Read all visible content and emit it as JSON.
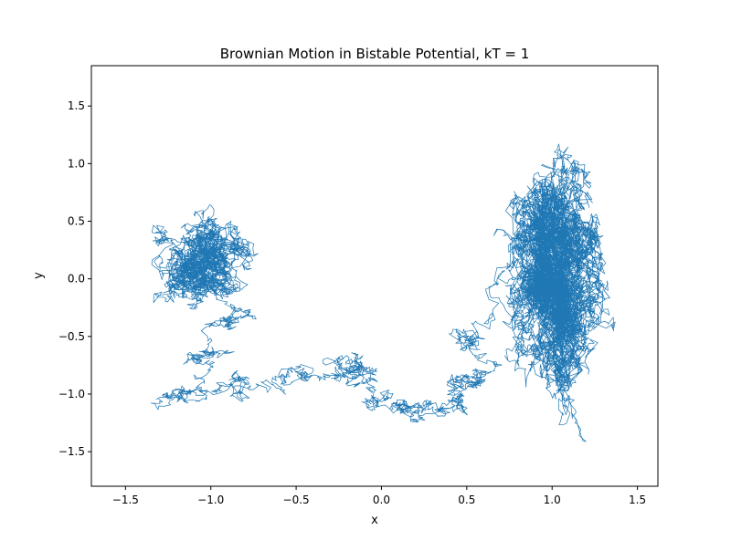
{
  "chart_data": {
    "type": "line",
    "title": "Brownian Motion in Bistable Potential, kT = 1",
    "xlabel": "x",
    "ylabel": "y",
    "xlim": [
      -1.7,
      1.62
    ],
    "ylim": [
      -1.8,
      1.85
    ],
    "x_ticks": [
      -1.5,
      -1.0,
      -0.5,
      0.0,
      0.5,
      1.0,
      1.5
    ],
    "x_tick_labels": [
      "−1.5",
      "−1.0",
      "−0.5",
      "0.0",
      "0.5",
      "1.0",
      "1.5"
    ],
    "y_ticks": [
      -1.5,
      -1.0,
      -0.5,
      0.0,
      0.5,
      1.0,
      1.5
    ],
    "y_tick_labels": [
      "−1.5",
      "−1.0",
      "−0.5",
      "0.0",
      "0.5",
      "1.0",
      "1.5"
    ],
    "grid": false,
    "series": [
      {
        "color": "#1f77b4",
        "description_points": {
          "left_well_center": [
            -1.05,
            0.1
          ],
          "right_well_center": [
            0.98,
            -0.1
          ],
          "transition_path": [
            [
              -1.0,
              0.3
            ],
            [
              -0.95,
              0.0
            ],
            [
              -0.9,
              -0.4
            ],
            [
              -1.1,
              -0.7
            ],
            [
              -1.15,
              -1.0
            ],
            [
              -0.8,
              -0.95
            ],
            [
              -0.45,
              -0.8
            ],
            [
              -0.2,
              -0.7
            ],
            [
              -0.05,
              -0.8
            ],
            [
              0.05,
              -1.1
            ],
            [
              0.25,
              -1.15
            ],
            [
              0.45,
              -1.05
            ],
            [
              0.5,
              -0.85
            ],
            [
              0.55,
              -0.5
            ]
          ]
        }
      }
    ],
    "colors": {
      "line": "#1f77b4",
      "axes": "#000000",
      "background": "#ffffff"
    }
  }
}
